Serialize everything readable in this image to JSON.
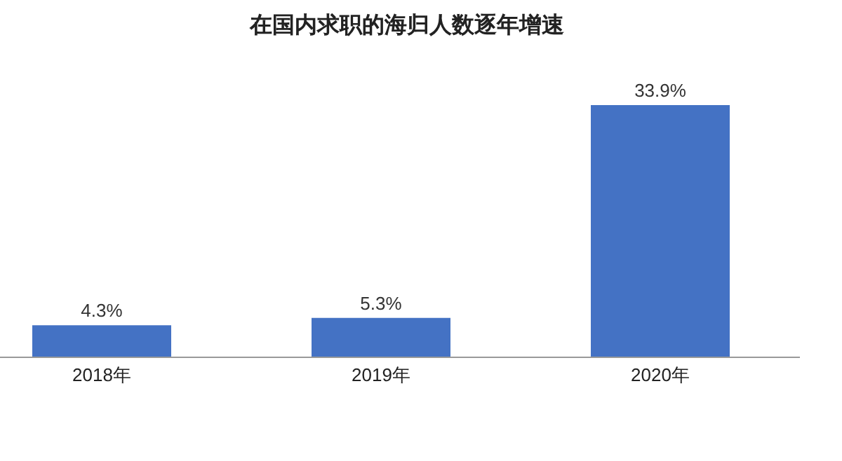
{
  "chart_data": {
    "type": "bar",
    "title": "在国内求职的海归人数逐年增速",
    "categories": [
      "2018年",
      "2019年",
      "2020年"
    ],
    "values": [
      4.3,
      5.3,
      33.9
    ],
    "color": "#4472c4",
    "data_labels": true,
    "value_labels": [
      "4.3%",
      "5.3%",
      "33.9%"
    ]
  }
}
